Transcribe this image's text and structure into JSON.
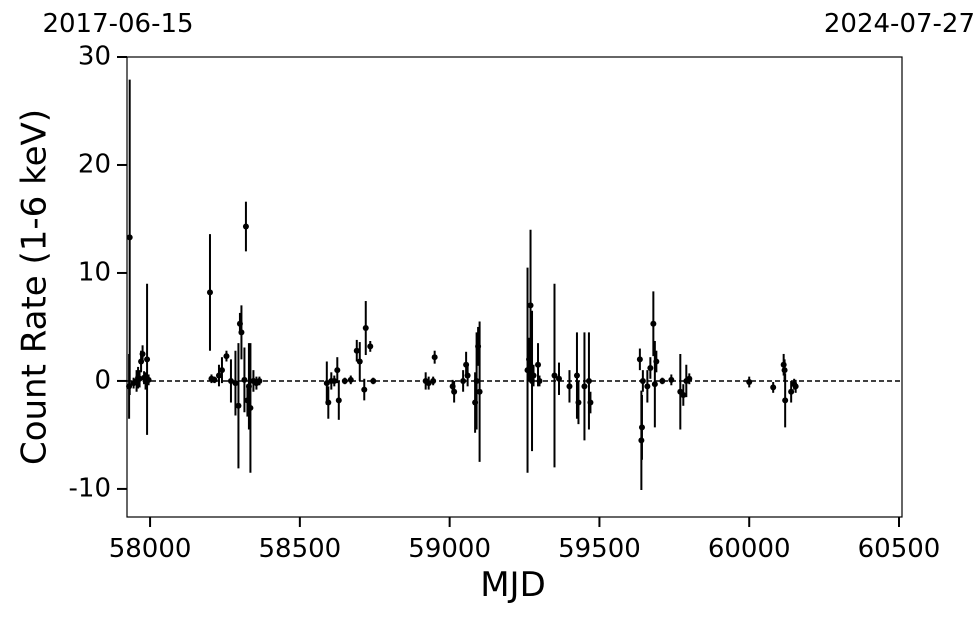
{
  "chart_data": {
    "type": "errorbar-scatter",
    "xlabel": "MJD",
    "ylabel": "Count Rate (1-6 keV)",
    "top_labels": [
      "2017-06-15",
      "2024-07-27"
    ],
    "xlim": [
      57923,
      60510
    ],
    "ylim": [
      -12.6,
      30
    ],
    "xticks": [
      58000,
      58500,
      59000,
      59500,
      60000,
      60500
    ],
    "yticks": [
      -10,
      0,
      10,
      20,
      30
    ],
    "hline": 0,
    "series": [
      {
        "color": "#000000",
        "x": [
          57930,
          57932,
          57945,
          57955,
          57960,
          57965,
          57970,
          57975,
          57980,
          57985,
          57990,
          57995,
          58200,
          58205,
          58215,
          58230,
          58240,
          58255,
          58270,
          58285,
          58295,
          58300,
          58305,
          58315,
          58320,
          58325,
          58330,
          58335,
          58345,
          58355,
          58365,
          58590,
          58595,
          58605,
          58615,
          58625,
          58630,
          58650,
          58670,
          58690,
          58700,
          58715,
          58720,
          58735,
          58745,
          58920,
          58930,
          58945,
          58950,
          59010,
          59015,
          59045,
          59055,
          59060,
          59085,
          59090,
          59095,
          59100,
          59260,
          59265,
          59270,
          59275,
          59280,
          59295,
          59300,
          59350,
          59365,
          59400,
          59425,
          59430,
          59450,
          59465,
          59470,
          59635,
          59640,
          59642,
          59645,
          59660,
          59670,
          59680,
          59685,
          59690,
          59710,
          59740,
          59770,
          59780,
          59790,
          59800,
          60000,
          60080,
          60115,
          60118,
          60120,
          60140,
          60150,
          60155
        ],
        "values": [
          -0.5,
          13.3,
          -0.2,
          0,
          0.3,
          0.2,
          1.8,
          2.5,
          0.3,
          0,
          2,
          0.1,
          8.2,
          0.2,
          0.1,
          0.5,
          1,
          2.3,
          0,
          -0.2,
          -2.3,
          5.3,
          4.5,
          0.1,
          14.3,
          -1.8,
          -0.5,
          -2.5,
          0,
          -0.2,
          0,
          -0.2,
          -2,
          0,
          0,
          1,
          -1.8,
          0,
          0.1,
          2.8,
          1.8,
          -0.8,
          4.9,
          3.2,
          0,
          0,
          -0.2,
          0,
          2.2,
          -0.5,
          -1,
          0,
          1.5,
          0.5,
          -2,
          0,
          3.2,
          -1,
          1,
          2,
          7,
          0,
          0.5,
          1.5,
          0,
          0.5,
          0.2,
          -0.5,
          0.5,
          -2,
          -0.5,
          0,
          -2,
          2,
          -5.5,
          -4.3,
          0,
          -0.5,
          1.2,
          5.3,
          -0.3,
          1.8,
          0,
          0.1,
          -1,
          -1.3,
          0,
          0.2,
          -0.1,
          -0.6,
          1.5,
          1,
          -1.8,
          -1,
          -0.3,
          -0.5
        ],
        "errors": [
          3,
          14.6,
          0.5,
          1,
          1,
          0.8,
          1,
          0.8,
          0.6,
          0.8,
          7,
          0.5,
          5.4,
          0.4,
          0.3,
          1,
          1.2,
          0.5,
          2,
          3,
          5.8,
          1,
          2.5,
          3,
          2.3,
          1.5,
          4,
          6,
          1,
          0.6,
          0.4,
          2,
          1.5,
          0.8,
          0.5,
          1.2,
          1.8,
          0.3,
          0.4,
          1,
          1.8,
          1,
          2.5,
          0.5,
          0.3,
          0.8,
          0.6,
          0.4,
          0.6,
          0.6,
          1,
          1,
          1.2,
          1,
          2.8,
          4.5,
          1.8,
          6.5,
          9.5,
          2,
          7,
          6.5,
          1,
          2,
          0.5,
          8.5,
          1.5,
          1.5,
          4,
          2,
          5,
          4.5,
          1,
          1,
          4.6,
          3,
          1,
          1.5,
          1,
          3,
          4,
          1,
          0.3,
          0.5,
          3.5,
          1,
          1.5,
          0.5,
          0.5,
          0.5,
          1,
          1,
          2.5,
          1,
          0.5,
          0.6
        ]
      }
    ]
  }
}
